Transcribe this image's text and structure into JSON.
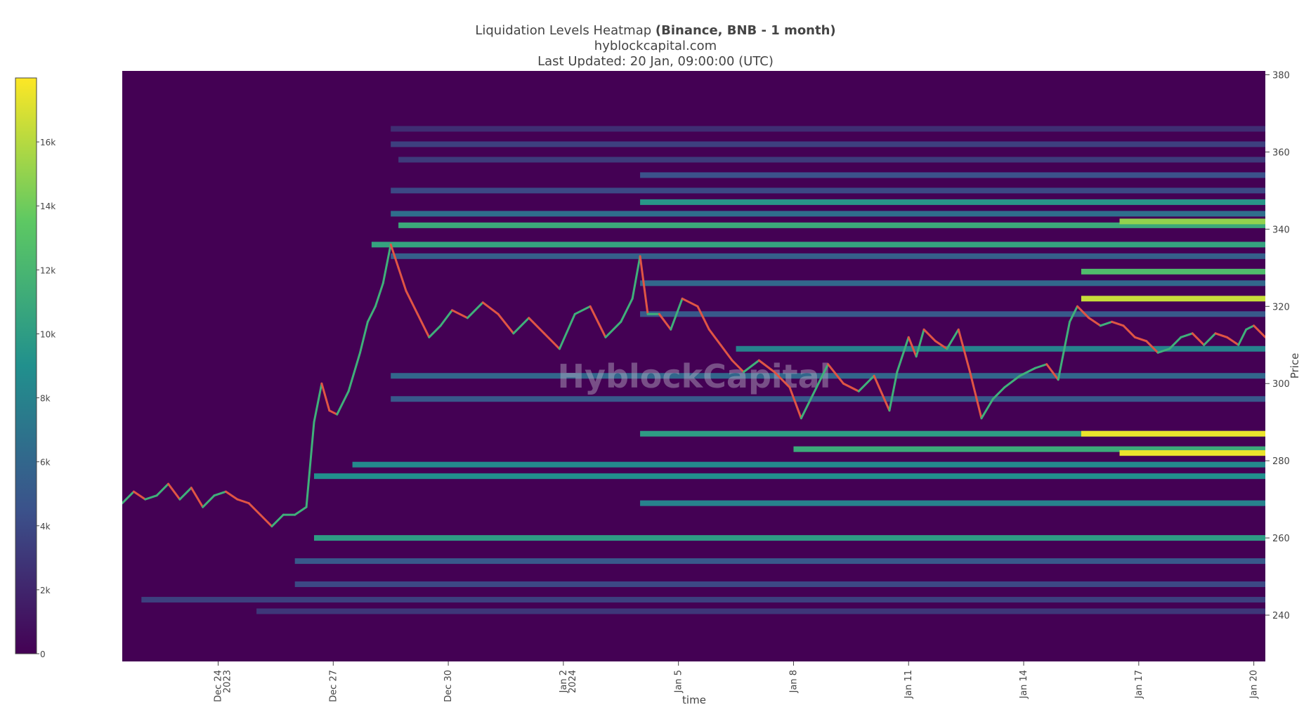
{
  "header": {
    "title_prefix": "Liquidation Levels Heatmap ",
    "title_bold": "(Binance, BNB - 1 month)",
    "source": "hyblockcapital.com",
    "updated": "Last Updated: 20 Jan, 09:00:00 (UTC)"
  },
  "watermark": "HyblockCapital",
  "colorbar": {
    "ticks": [
      {
        "label": "0",
        "value": 0
      },
      {
        "label": "2k",
        "value": 2000
      },
      {
        "label": "4k",
        "value": 4000
      },
      {
        "label": "6k",
        "value": 6000
      },
      {
        "label": "8k",
        "value": 8000
      },
      {
        "label": "10k",
        "value": 10000
      },
      {
        "label": "12k",
        "value": 12000
      },
      {
        "label": "14k",
        "value": 14000
      },
      {
        "label": "16k",
        "value": 16000
      }
    ],
    "max": 18000,
    "colorscale": [
      "#440154",
      "#3b528b",
      "#21908d",
      "#5dc863",
      "#fde725"
    ]
  },
  "chart_data": {
    "type": "heatmap",
    "title": "Liquidation Levels Heatmap (Binance, BNB - 1 month)",
    "xlabel": "time",
    "ylabel": "Price",
    "ylim": [
      228,
      381
    ],
    "xlim_days": [
      0,
      29.8
    ],
    "x_ticks": [
      {
        "label": "Dec 24",
        "sub": "2023",
        "day": 2.5
      },
      {
        "label": "Dec 27",
        "sub": "",
        "day": 5.5
      },
      {
        "label": "Dec 30",
        "sub": "",
        "day": 8.5
      },
      {
        "label": "Jan 2",
        "sub": "2024",
        "day": 11.5
      },
      {
        "label": "Jan 5",
        "sub": "",
        "day": 14.5
      },
      {
        "label": "Jan 8",
        "sub": "",
        "day": 17.5
      },
      {
        "label": "Jan 11",
        "sub": "",
        "day": 20.5
      },
      {
        "label": "Jan 14",
        "sub": "",
        "day": 23.5
      },
      {
        "label": "Jan 17",
        "sub": "",
        "day": 26.5
      },
      {
        "label": "Jan 20",
        "sub": "",
        "day": 29.5
      }
    ],
    "y_ticks": [
      240,
      260,
      280,
      300,
      320,
      340,
      360,
      380
    ],
    "price_series": [
      [
        0,
        269
      ],
      [
        0.3,
        272
      ],
      [
        0.6,
        270
      ],
      [
        0.9,
        271
      ],
      [
        1.2,
        274
      ],
      [
        1.5,
        270
      ],
      [
        1.8,
        273
      ],
      [
        2.1,
        268
      ],
      [
        2.4,
        271
      ],
      [
        2.7,
        272
      ],
      [
        3,
        270
      ],
      [
        3.3,
        269
      ],
      [
        3.6,
        266
      ],
      [
        3.9,
        263
      ],
      [
        4.2,
        266
      ],
      [
        4.5,
        266
      ],
      [
        4.8,
        268
      ],
      [
        5.0,
        290
      ],
      [
        5.2,
        300
      ],
      [
        5.4,
        293
      ],
      [
        5.6,
        292
      ],
      [
        5.9,
        298
      ],
      [
        6.2,
        308
      ],
      [
        6.4,
        316
      ],
      [
        6.6,
        320
      ],
      [
        6.8,
        326
      ],
      [
        7.0,
        336
      ],
      [
        7.2,
        330
      ],
      [
        7.4,
        324
      ],
      [
        7.7,
        318
      ],
      [
        8.0,
        312
      ],
      [
        8.3,
        315
      ],
      [
        8.6,
        319
      ],
      [
        9.0,
        317
      ],
      [
        9.4,
        321
      ],
      [
        9.8,
        318
      ],
      [
        10.2,
        313
      ],
      [
        10.6,
        317
      ],
      [
        11.0,
        313
      ],
      [
        11.4,
        309
      ],
      [
        11.8,
        318
      ],
      [
        12.2,
        320
      ],
      [
        12.6,
        312
      ],
      [
        13.0,
        316
      ],
      [
        13.3,
        322
      ],
      [
        13.5,
        333
      ],
      [
        13.7,
        318
      ],
      [
        14.0,
        318
      ],
      [
        14.3,
        314
      ],
      [
        14.6,
        322
      ],
      [
        15.0,
        320
      ],
      [
        15.3,
        314
      ],
      [
        15.6,
        310
      ],
      [
        15.9,
        306
      ],
      [
        16.2,
        303
      ],
      [
        16.6,
        306
      ],
      [
        17.0,
        303
      ],
      [
        17.4,
        299
      ],
      [
        17.7,
        291
      ],
      [
        18.0,
        297
      ],
      [
        18.4,
        305
      ],
      [
        18.8,
        300
      ],
      [
        19.2,
        298
      ],
      [
        19.6,
        302
      ],
      [
        20.0,
        293
      ],
      [
        20.2,
        303
      ],
      [
        20.5,
        312
      ],
      [
        20.7,
        307
      ],
      [
        20.9,
        314
      ],
      [
        21.2,
        311
      ],
      [
        21.5,
        309
      ],
      [
        21.8,
        314
      ],
      [
        22.1,
        303
      ],
      [
        22.4,
        291
      ],
      [
        22.7,
        296
      ],
      [
        23.0,
        299
      ],
      [
        23.4,
        302
      ],
      [
        23.8,
        304
      ],
      [
        24.1,
        305
      ],
      [
        24.4,
        301
      ],
      [
        24.7,
        316
      ],
      [
        24.9,
        320
      ],
      [
        25.2,
        317
      ],
      [
        25.5,
        315
      ],
      [
        25.8,
        316
      ],
      [
        26.1,
        315
      ],
      [
        26.4,
        312
      ],
      [
        26.7,
        311
      ],
      [
        27.0,
        308
      ],
      [
        27.3,
        309
      ],
      [
        27.6,
        312
      ],
      [
        27.9,
        313
      ],
      [
        28.2,
        310
      ],
      [
        28.5,
        313
      ],
      [
        28.8,
        312
      ],
      [
        29.1,
        310
      ],
      [
        29.3,
        314
      ],
      [
        29.5,
        315
      ],
      [
        29.8,
        312
      ]
    ],
    "liquidation_bands": [
      {
        "price": 366,
        "start": 7.0,
        "level": 2500
      },
      {
        "price": 362,
        "start": 7.0,
        "level": 3500
      },
      {
        "price": 358,
        "start": 7.2,
        "level": 3200
      },
      {
        "price": 354,
        "start": 13.5,
        "level": 4500
      },
      {
        "price": 350,
        "start": 7.0,
        "level": 4000
      },
      {
        "price": 347,
        "start": 13.5,
        "level": 9500
      },
      {
        "price": 344,
        "start": 7.0,
        "level": 6500
      },
      {
        "price": 341,
        "start": 7.2,
        "level": 11000
      },
      {
        "price": 342,
        "start": 26.0,
        "level": 15000
      },
      {
        "price": 336,
        "start": 6.5,
        "level": 10500
      },
      {
        "price": 333,
        "start": 7.0,
        "level": 5500
      },
      {
        "price": 329,
        "start": 25.0,
        "level": 12500
      },
      {
        "price": 326,
        "start": 13.5,
        "level": 6000
      },
      {
        "price": 322,
        "start": 25.0,
        "level": 16500
      },
      {
        "price": 318,
        "start": 13.5,
        "level": 5000
      },
      {
        "price": 309,
        "start": 16.0,
        "level": 8000
      },
      {
        "price": 302,
        "start": 7.0,
        "level": 6000
      },
      {
        "price": 296,
        "start": 7.0,
        "level": 5000
      },
      {
        "price": 287,
        "start": 13.5,
        "level": 10000
      },
      {
        "price": 287,
        "start": 25.0,
        "level": 17500
      },
      {
        "price": 283,
        "start": 17.5,
        "level": 11000
      },
      {
        "price": 282,
        "start": 26.0,
        "level": 17500
      },
      {
        "price": 279,
        "start": 6.0,
        "level": 8500
      },
      {
        "price": 276,
        "start": 5.0,
        "level": 9000
      },
      {
        "price": 269,
        "start": 13.5,
        "level": 8000
      },
      {
        "price": 260,
        "start": 5.0,
        "level": 10000
      },
      {
        "price": 254,
        "start": 4.5,
        "level": 5000
      },
      {
        "price": 248,
        "start": 4.5,
        "level": 4000
      },
      {
        "price": 244,
        "start": 0.5,
        "level": 3500
      },
      {
        "price": 241,
        "start": 3.5,
        "level": 3000
      }
    ]
  }
}
